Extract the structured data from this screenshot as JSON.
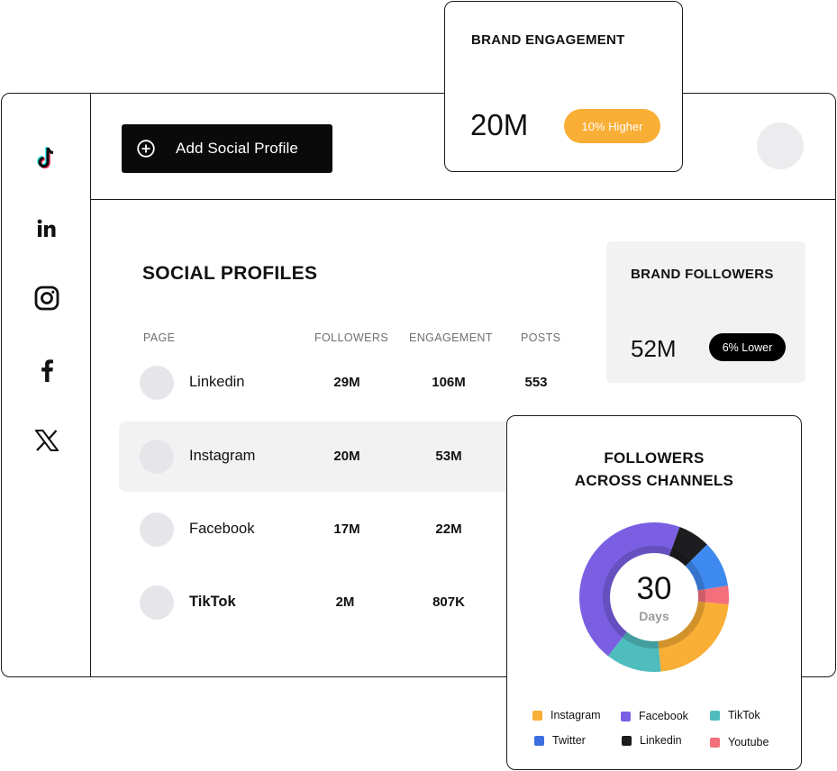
{
  "sidebar": {
    "items": [
      {
        "name": "tiktok-icon"
      },
      {
        "name": "linkedin-icon"
      },
      {
        "name": "instagram-icon"
      },
      {
        "name": "facebook-icon"
      },
      {
        "name": "x-icon"
      }
    ]
  },
  "toolbar": {
    "add_label": "Add Social Profile",
    "add_icon": "plus-circle-icon"
  },
  "profiles": {
    "title": "SOCIAL PROFILES",
    "columns": [
      "PAGE",
      "FOLLOWERS",
      "ENGAGEMENT",
      "POSTS"
    ],
    "rows": [
      {
        "page": "Linkedin",
        "followers": "29M",
        "engagement": "106M",
        "posts": "553"
      },
      {
        "page": "Instagram",
        "followers": "20M",
        "engagement": "53M",
        "posts": ""
      },
      {
        "page": "Facebook",
        "followers": "17M",
        "engagement": "22M",
        "posts": ""
      },
      {
        "page": "TikTok",
        "followers": "2M",
        "engagement": "807K",
        "posts": ""
      }
    ]
  },
  "brand_followers": {
    "title": "BRAND FOLLOWERS",
    "value": "52M",
    "badge": "6% Lower"
  },
  "brand_engagement": {
    "title": "BRAND ENGAGEMENT",
    "value": "20M",
    "badge": "10% Higher"
  },
  "channels": {
    "title_line1": "FOLLOWERS",
    "title_line2": "ACROSS CHANNELS",
    "center_value": "30",
    "center_label": "Days",
    "legend": [
      {
        "label": "Instagram",
        "color": "#f9ae35"
      },
      {
        "label": "Facebook",
        "color": "#7a5fe3"
      },
      {
        "label": "TikTok",
        "color": "#4fbdbd"
      },
      {
        "label": "Twitter",
        "color": "#3d6fe0"
      },
      {
        "label": "Linkedin",
        "color": "#1d1d1f"
      },
      {
        "label": "Youtube",
        "color": "#f36f7b"
      }
    ],
    "slices": [
      {
        "label": "Linkedin",
        "value": 7,
        "color": "#1d1d1f"
      },
      {
        "label": "Twitter",
        "value": 10,
        "color": "#3e8af0"
      },
      {
        "label": "Youtube",
        "value": 4,
        "color": "#f36f7b"
      },
      {
        "label": "Instagram",
        "value": 22,
        "color": "#f9ae35"
      },
      {
        "label": "TikTok",
        "value": 12,
        "color": "#4fbdbd"
      },
      {
        "label": "Facebook",
        "value": 45,
        "color": "#7a5fe3"
      }
    ]
  }
}
